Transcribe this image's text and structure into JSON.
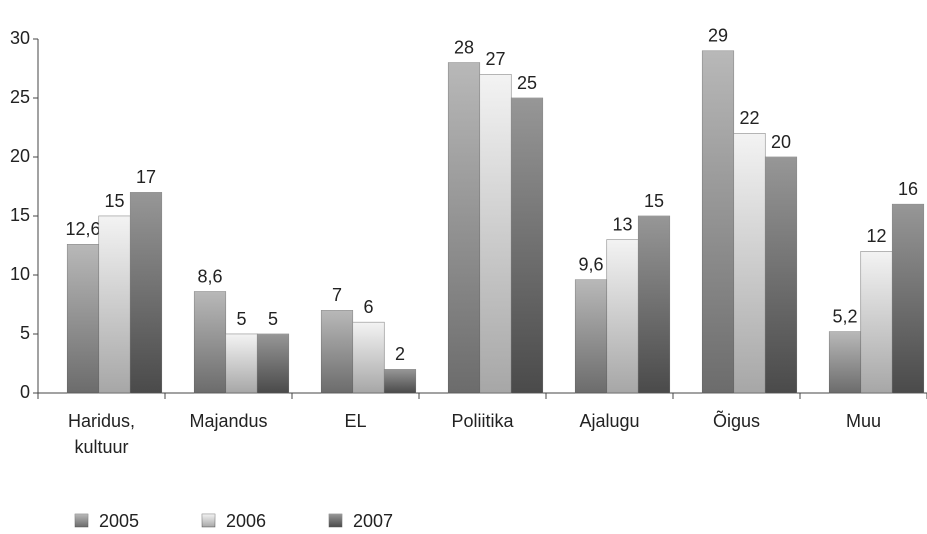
{
  "chart_data": {
    "type": "bar",
    "categories": [
      "Haridus, kultuur",
      "Majandus",
      "EL",
      "Poliitika",
      "Ajalugu",
      "Õigus",
      "Muu"
    ],
    "series": [
      {
        "name": "2005",
        "color": "#9a9a9a",
        "values": [
          12.6,
          8.6,
          7,
          28,
          9.6,
          29,
          5.2
        ],
        "value_labels": [
          "12,6",
          "8,6",
          "7",
          "28",
          "9,6",
          "29",
          "5,2"
        ]
      },
      {
        "name": "2006",
        "color": "#eeeeee",
        "values": [
          15,
          5,
          6,
          27,
          13,
          22,
          12
        ],
        "value_labels": [
          "15",
          "5",
          "6",
          "27",
          "13",
          "22",
          "12"
        ]
      },
      {
        "name": "2007",
        "color": "#6a6a6a",
        "values": [
          17,
          5,
          2,
          25,
          15,
          20,
          16
        ],
        "value_labels": [
          "17",
          "5",
          "2",
          "25",
          "15",
          "20",
          "16"
        ]
      }
    ],
    "ylim": [
      0,
      30
    ],
    "yticks": [
      0,
      5,
      10,
      15,
      20,
      25,
      30
    ]
  }
}
